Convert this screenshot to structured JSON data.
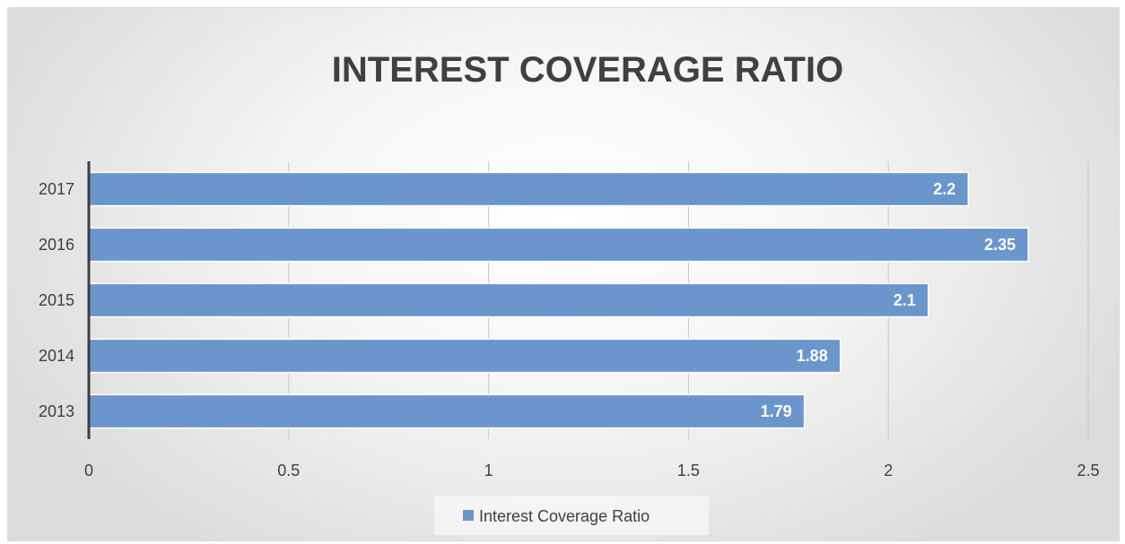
{
  "chart_data": {
    "type": "bar",
    "orientation": "horizontal",
    "title": "INTEREST COVERAGE RATIO",
    "categories": [
      "2013",
      "2014",
      "2015",
      "2016",
      "2017"
    ],
    "series": [
      {
        "name": "Interest Coverage Ratio",
        "values": [
          1.79,
          1.88,
          2.1,
          2.35,
          2.2
        ],
        "color": "#6a96cc"
      }
    ],
    "data_labels": [
      "1.79",
      "1.88",
      "2.1",
      "2.35",
      "2.2"
    ],
    "xlim": [
      0,
      2.5
    ],
    "x_ticks": [
      "0",
      "0.5",
      "1",
      "1.5",
      "2",
      "2.5"
    ],
    "grid": true,
    "legend_position": "bottom"
  }
}
